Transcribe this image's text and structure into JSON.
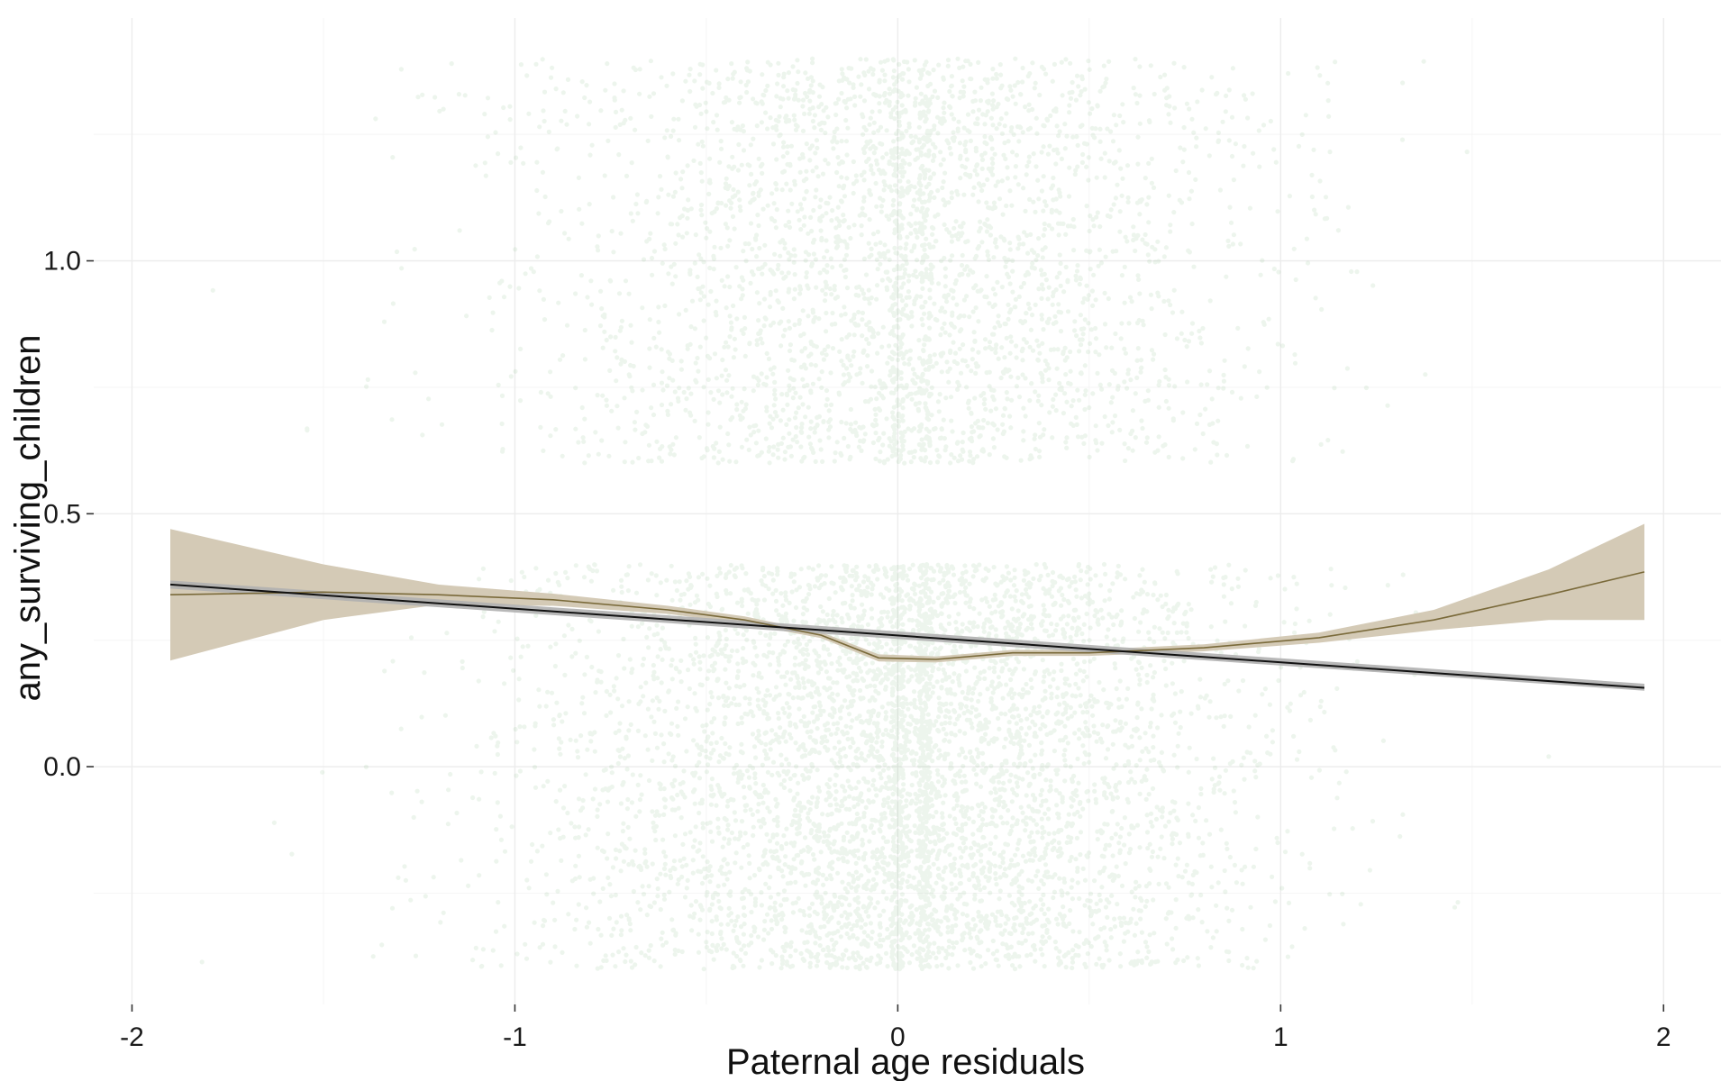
{
  "chart_data": {
    "type": "scatter",
    "title": "",
    "xlabel": "Paternal age residuals",
    "ylabel": "any_surviving_children",
    "xlim": [
      -2.1,
      2.15
    ],
    "ylim": [
      -0.47,
      1.48
    ],
    "x_ticks": [
      {
        "value": -2,
        "label": "-2"
      },
      {
        "value": -1,
        "label": "-1"
      },
      {
        "value": 0,
        "label": "0"
      },
      {
        "value": 1,
        "label": "1"
      },
      {
        "value": 2,
        "label": "2"
      }
    ],
    "y_ticks": [
      {
        "value": 0.0,
        "label": "0.0"
      },
      {
        "value": 0.5,
        "label": "0.5"
      },
      {
        "value": 1.0,
        "label": "1.0"
      }
    ],
    "grid": true,
    "points": {
      "color": "#4a9a52",
      "opacity": 0.1,
      "jitter_height": 0.4,
      "outcome_values": [
        0,
        1
      ],
      "outcome_share_of_1": 0.24,
      "x_center": 0.0,
      "x_spread_sd": 0.45,
      "dense_columns_x": [
        0.0,
        0.07
      ]
    },
    "linear_fit": {
      "color": "#111111",
      "band_color": "#b0b0b0",
      "x": [
        -1.9,
        1.95
      ],
      "y": [
        0.36,
        0.156
      ],
      "se_low": [
        0.352,
        0.15
      ],
      "se_high": [
        0.368,
        0.164
      ]
    },
    "smooth_fit": {
      "color": "#7a6a3a",
      "band_color": "#d2c7b2",
      "x": [
        -1.9,
        -1.5,
        -1.2,
        -0.9,
        -0.6,
        -0.4,
        -0.2,
        -0.05,
        0.1,
        0.3,
        0.5,
        0.8,
        1.1,
        1.4,
        1.7,
        1.95
      ],
      "y": [
        0.34,
        0.345,
        0.34,
        0.33,
        0.31,
        0.29,
        0.26,
        0.215,
        0.212,
        0.225,
        0.225,
        0.235,
        0.255,
        0.29,
        0.34,
        0.385
      ],
      "se_low": [
        0.21,
        0.29,
        0.32,
        0.318,
        0.302,
        0.283,
        0.254,
        0.208,
        0.206,
        0.219,
        0.219,
        0.228,
        0.245,
        0.27,
        0.29,
        0.29
      ],
      "se_high": [
        0.47,
        0.4,
        0.36,
        0.342,
        0.318,
        0.297,
        0.266,
        0.222,
        0.218,
        0.231,
        0.231,
        0.242,
        0.265,
        0.31,
        0.39,
        0.48
      ]
    }
  }
}
